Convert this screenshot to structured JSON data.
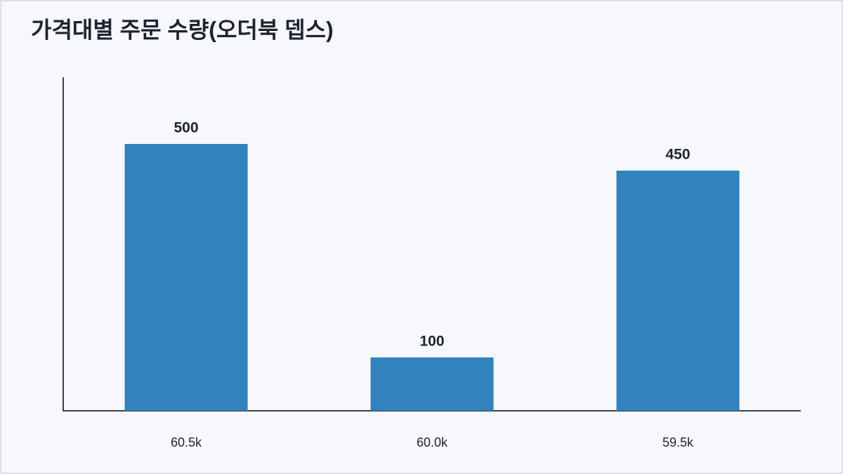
{
  "chart_data": {
    "type": "bar",
    "title": "가격대별 주문 수량(오더북 뎁스)",
    "categories": [
      "60.5k",
      "60.0k",
      "59.5k"
    ],
    "values": [
      500,
      100,
      450
    ],
    "color": "#3182bd",
    "ylim": [
      0,
      625
    ]
  }
}
